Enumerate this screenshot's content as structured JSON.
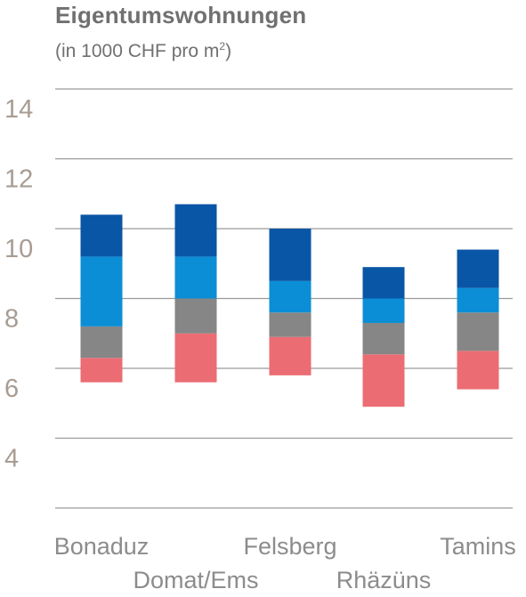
{
  "header": {
    "title": "Eigentumswohnungen",
    "subtitle_prefix": "(in 1000 CHF pro m",
    "subtitle_sup": "2",
    "subtitle_suffix": ")"
  },
  "chart_data": {
    "type": "bar",
    "subtype": "floating-stacked",
    "title": "Eigentumswohnungen",
    "subtitle": "(in 1000 CHF pro m2)",
    "xlabel": "",
    "ylabel": "",
    "ylim": [
      2,
      14
    ],
    "yticks": [
      4,
      6,
      8,
      10,
      12,
      14
    ],
    "grid": true,
    "legend": null,
    "categories": [
      "Bonaduz",
      "Domat/Ems",
      "Felsberg",
      "Rhäzüns",
      "Tamins"
    ],
    "segment_colors": [
      "#ec6c74",
      "#868686",
      "#0b8ed6",
      "#0a56a6"
    ],
    "series": [
      {
        "base": 5.6,
        "top": 10.4,
        "boundaries": [
          5.6,
          6.3,
          7.2,
          9.2,
          10.4
        ]
      },
      {
        "base": 5.6,
        "top": 10.7,
        "boundaries": [
          5.6,
          7.0,
          8.0,
          9.2,
          10.7
        ]
      },
      {
        "base": 5.8,
        "top": 10.0,
        "boundaries": [
          5.8,
          6.9,
          7.6,
          8.5,
          10.0
        ]
      },
      {
        "base": 4.9,
        "top": 8.9,
        "boundaries": [
          4.9,
          6.4,
          7.3,
          8.0,
          8.9
        ]
      },
      {
        "base": 5.4,
        "top": 9.4,
        "boundaries": [
          5.4,
          6.5,
          7.6,
          8.3,
          9.4
        ]
      }
    ]
  }
}
